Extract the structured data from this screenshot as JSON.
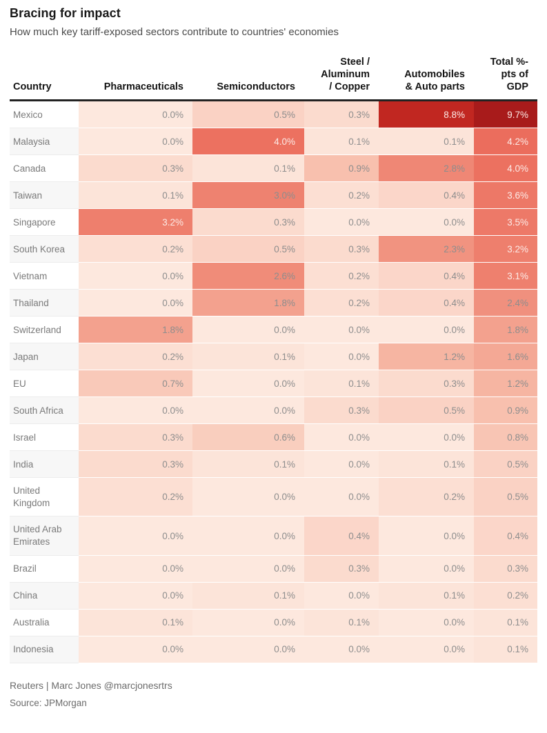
{
  "title": "Bracing for impact",
  "subtitle": "How much key tariff-exposed sectors contribute to countries' economies",
  "footer": {
    "credit": "Reuters | Marc Jones @marcjonesrtrs",
    "source": "Source: JPMorgan"
  },
  "colors": {
    "header_rule": "#222222",
    "cell_text_dark": "#8d8d8d",
    "cell_text_light": "#fcebe7",
    "country_text": "#7a7a7a",
    "zebra_stripe": "#f7f7f7",
    "row_white": "#ffffff",
    "scale_low": "#fde8de",
    "scale_high": "#a81b1b"
  },
  "chart_data": {
    "type": "heatmap",
    "title": "Bracing for impact",
    "subtitle": "How much key tariff-exposed sectors contribute to countries' economies",
    "value_unit": "% of GDP",
    "value_format": "one_decimal_percent",
    "value_range": [
      0,
      9.7
    ],
    "light_text_threshold": 3.0,
    "color_scale_stops": [
      [
        0.0,
        "#fde8de"
      ],
      [
        1.0,
        "#f7bca9"
      ],
      [
        2.0,
        "#f29a87"
      ],
      [
        3.0,
        "#ee8270"
      ],
      [
        4.2,
        "#eb6d5d"
      ],
      [
        8.8,
        "#c12721"
      ],
      [
        9.7,
        "#a81b1b"
      ]
    ],
    "columns": [
      "Country",
      "Pharmaceuticals",
      "Semiconductors",
      "Steel /\nAluminum\n/ Copper",
      "Automobiles\n& Auto parts",
      "Total %-\npts of\nGDP"
    ],
    "rows": [
      {
        "country": "Mexico",
        "values": [
          0.0,
          0.5,
          0.3,
          8.8,
          9.7
        ]
      },
      {
        "country": "Malaysia",
        "values": [
          0.0,
          4.0,
          0.1,
          0.1,
          4.2
        ]
      },
      {
        "country": "Canada",
        "values": [
          0.3,
          0.1,
          0.9,
          2.8,
          4.0
        ]
      },
      {
        "country": "Taiwan",
        "values": [
          0.1,
          3.0,
          0.2,
          0.4,
          3.6
        ]
      },
      {
        "country": "Singapore",
        "values": [
          3.2,
          0.3,
          0.0,
          0.0,
          3.5
        ]
      },
      {
        "country": "South Korea",
        "values": [
          0.2,
          0.5,
          0.3,
          2.3,
          3.2
        ]
      },
      {
        "country": "Vietnam",
        "values": [
          0.0,
          2.6,
          0.2,
          0.4,
          3.1
        ]
      },
      {
        "country": "Thailand",
        "values": [
          0.0,
          1.8,
          0.2,
          0.4,
          2.4
        ]
      },
      {
        "country": "Switzerland",
        "values": [
          1.8,
          0.0,
          0.0,
          0.0,
          1.8
        ]
      },
      {
        "country": "Japan",
        "values": [
          0.2,
          0.1,
          0.0,
          1.2,
          1.6
        ]
      },
      {
        "country": "EU",
        "values": [
          0.7,
          0.0,
          0.1,
          0.3,
          1.2
        ]
      },
      {
        "country": "South Africa",
        "values": [
          0.0,
          0.0,
          0.3,
          0.5,
          0.9
        ]
      },
      {
        "country": "Israel",
        "values": [
          0.3,
          0.6,
          0.0,
          0.0,
          0.8
        ]
      },
      {
        "country": "India",
        "values": [
          0.3,
          0.1,
          0.0,
          0.1,
          0.5
        ]
      },
      {
        "country": "United Kingdom",
        "values": [
          0.2,
          0.0,
          0.0,
          0.2,
          0.5
        ]
      },
      {
        "country": "United Arab Emirates",
        "values": [
          0.0,
          0.0,
          0.4,
          0.0,
          0.4
        ]
      },
      {
        "country": "Brazil",
        "values": [
          0.0,
          0.0,
          0.3,
          0.0,
          0.3
        ]
      },
      {
        "country": "China",
        "values": [
          0.0,
          0.1,
          0.0,
          0.1,
          0.2
        ]
      },
      {
        "country": "Australia",
        "values": [
          0.1,
          0.0,
          0.1,
          0.0,
          0.1
        ]
      },
      {
        "country": "Indonesia",
        "values": [
          0.0,
          0.0,
          0.0,
          0.0,
          0.1
        ]
      }
    ]
  }
}
